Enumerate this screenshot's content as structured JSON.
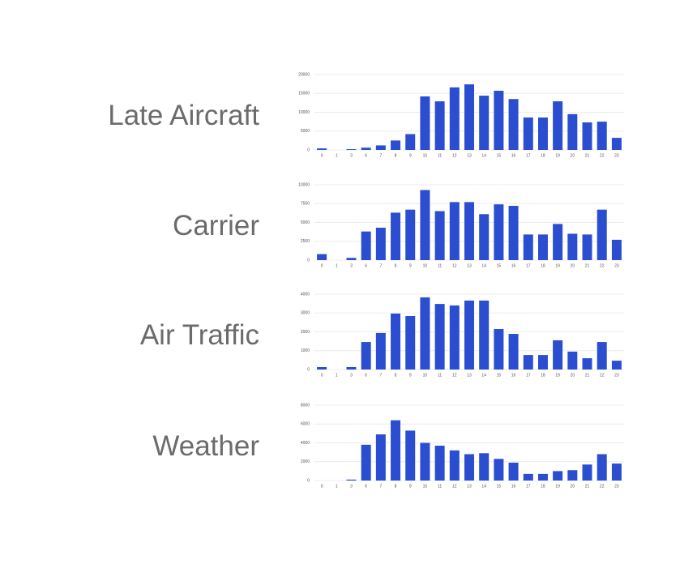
{
  "chart_data": [
    {
      "type": "bar",
      "title": "Late Aircraft",
      "categories": [
        "0",
        "1",
        "3",
        "6",
        "7",
        "8",
        "9",
        "10",
        "11",
        "12",
        "13",
        "14",
        "15",
        "16",
        "17",
        "18",
        "19",
        "20",
        "21",
        "22",
        "23"
      ],
      "values": [
        400,
        0,
        200,
        600,
        1200,
        2500,
        4200,
        14200,
        12900,
        16600,
        17400,
        14400,
        15700,
        13500,
        8600,
        8600,
        12900,
        9500,
        7300,
        7500,
        3200
      ],
      "color": "#2b4ed1",
      "ylim": [
        0,
        20000
      ],
      "yticks": [
        0,
        5000,
        10000,
        15000,
        20000
      ],
      "grid": true
    },
    {
      "type": "bar",
      "title": "Carrier",
      "categories": [
        "0",
        "1",
        "3",
        "6",
        "7",
        "8",
        "9",
        "10",
        "11",
        "12",
        "13",
        "14",
        "15",
        "16",
        "17",
        "18",
        "19",
        "20",
        "21",
        "22",
        "23"
      ],
      "values": [
        800,
        0,
        300,
        3800,
        4300,
        6300,
        6700,
        9300,
        6500,
        7700,
        7700,
        6100,
        7400,
        7200,
        3400,
        3400,
        4800,
        3500,
        3400,
        6700,
        2700
      ],
      "color": "#2b4ed1",
      "ylim": [
        0,
        10000
      ],
      "yticks": [
        0,
        2500,
        5000,
        7500,
        10000
      ],
      "grid": true
    },
    {
      "type": "bar",
      "title": "Air Traffic",
      "categories": [
        "0",
        "1",
        "3",
        "6",
        "7",
        "8",
        "9",
        "10",
        "11",
        "12",
        "13",
        "14",
        "15",
        "16",
        "17",
        "18",
        "19",
        "20",
        "21",
        "22",
        "23"
      ],
      "values": [
        130,
        0,
        130,
        1460,
        1940,
        2970,
        2840,
        3830,
        3480,
        3400,
        3660,
        3660,
        2150,
        1890,
        770,
        770,
        1550,
        950,
        600,
        1460,
        470
      ],
      "color": "#2b4ed1",
      "ylim": [
        0,
        4000
      ],
      "yticks": [
        0,
        1000,
        2000,
        3000,
        4000
      ],
      "grid": true
    },
    {
      "type": "bar",
      "title": "Weather",
      "categories": [
        "0",
        "1",
        "3",
        "6",
        "7",
        "8",
        "9",
        "10",
        "11",
        "12",
        "13",
        "14",
        "15",
        "16",
        "17",
        "18",
        "19",
        "20",
        "21",
        "22",
        "23"
      ],
      "values": [
        0,
        0,
        100,
        3800,
        4900,
        6400,
        5300,
        4000,
        3700,
        3200,
        2800,
        2900,
        2300,
        1900,
        700,
        700,
        1000,
        1100,
        1700,
        2800,
        1800
      ],
      "color": "#2b4ed1",
      "ylim": [
        0,
        8000
      ],
      "yticks": [
        0,
        2000,
        4000,
        6000,
        8000
      ],
      "grid": true
    }
  ]
}
